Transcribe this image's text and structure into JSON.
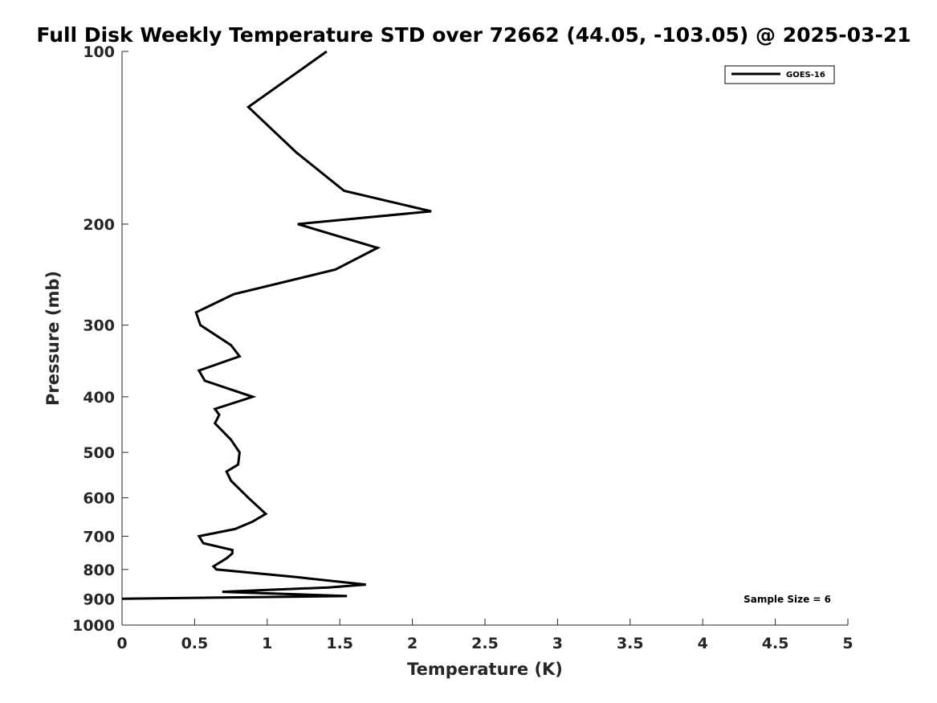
{
  "chart_data": {
    "type": "line",
    "title": "Full Disk Weekly Temperature STD over 72662 (44.05, -103.05) @ 2025-03-21",
    "xlabel": "Temperature (K)",
    "ylabel": "Pressure (mb)",
    "xlim": [
      0,
      5
    ],
    "ylim": [
      100,
      1000
    ],
    "y_scale": "log",
    "y_reversed": true,
    "x_ticks": [
      "0",
      "0.5",
      "1",
      "1.5",
      "2",
      "2.5",
      "3",
      "3.5",
      "4",
      "4.5",
      "5"
    ],
    "y_ticks": [
      "100",
      "200",
      "300",
      "400",
      "500",
      "600",
      "700",
      "800",
      "900",
      "1000"
    ],
    "grid": false,
    "legend_position": "top-right",
    "annotation": "Sample Size = 6",
    "series": [
      {
        "name": "GOES-16",
        "color": "#000000",
        "points": [
          [
            1.41,
            100
          ],
          [
            0.87,
            125
          ],
          [
            1.2,
            150
          ],
          [
            1.53,
            175
          ],
          [
            2.13,
            190
          ],
          [
            1.21,
            200
          ],
          [
            1.76,
            220
          ],
          [
            1.47,
            240
          ],
          [
            0.77,
            265
          ],
          [
            0.51,
            285
          ],
          [
            0.54,
            300
          ],
          [
            0.75,
            325
          ],
          [
            0.81,
            340
          ],
          [
            0.53,
            360
          ],
          [
            0.57,
            375
          ],
          [
            0.9,
            400
          ],
          [
            0.64,
            420
          ],
          [
            0.67,
            430
          ],
          [
            0.64,
            445
          ],
          [
            0.75,
            475
          ],
          [
            0.81,
            500
          ],
          [
            0.8,
            525
          ],
          [
            0.72,
            540
          ],
          [
            0.75,
            560
          ],
          [
            0.87,
            600
          ],
          [
            0.99,
            640
          ],
          [
            0.9,
            660
          ],
          [
            0.78,
            680
          ],
          [
            0.53,
            700
          ],
          [
            0.56,
            720
          ],
          [
            0.76,
            740
          ],
          [
            0.76,
            750
          ],
          [
            0.72,
            765
          ],
          [
            0.63,
            790
          ],
          [
            0.65,
            800
          ],
          [
            1.2,
            825
          ],
          [
            1.68,
            850
          ],
          [
            1.42,
            860
          ],
          [
            0.69,
            875
          ],
          [
            1.55,
            890
          ],
          [
            0.0,
            900
          ]
        ]
      }
    ]
  }
}
